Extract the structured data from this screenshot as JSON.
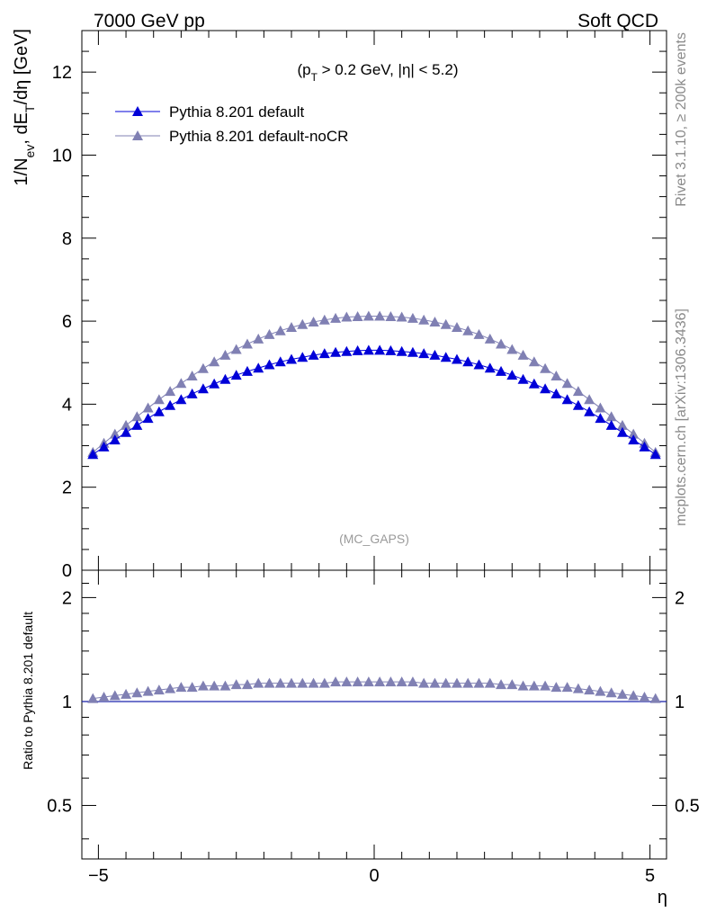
{
  "header": {
    "left": "7000 GeV pp",
    "right": "Soft QCD"
  },
  "side_texts": {
    "rivet": "Rivet 3.1.10, ≥ 200k events",
    "mcplots": "mcplots.cern.ch [arXiv:1306.3436]"
  },
  "annotation": "(MC_GAPS)",
  "colors": {
    "series1": "#0000d8",
    "series2": "#8080b3",
    "reference_line": "#8db000",
    "side_text": "#8a8a8a"
  },
  "chart_data": [
    {
      "type": "line",
      "title": "(p_T > 0.2 GeV, |η| < 5.2)",
      "ylabel": "1/N_ev, dE_T/dη [GeV]",
      "xlabel": "",
      "xlim": [
        -5.3,
        5.3
      ],
      "ylim": [
        0,
        13
      ],
      "y_ticks": [
        0,
        2,
        4,
        6,
        8,
        10,
        12
      ],
      "legend_position": "top-left",
      "grid": false,
      "x": [
        -5.1,
        -4.9,
        -4.7,
        -4.5,
        -4.3,
        -4.1,
        -3.9,
        -3.7,
        -3.5,
        -3.3,
        -3.1,
        -2.9,
        -2.7,
        -2.5,
        -2.3,
        -2.1,
        -1.9,
        -1.7,
        -1.5,
        -1.3,
        -1.1,
        -0.9,
        -0.7,
        -0.5,
        -0.3,
        -0.1,
        0.1,
        0.3,
        0.5,
        0.7,
        0.9,
        1.1,
        1.3,
        1.5,
        1.7,
        1.9,
        2.1,
        2.3,
        2.5,
        2.7,
        2.9,
        3.1,
        3.3,
        3.5,
        3.7,
        3.9,
        4.1,
        4.3,
        4.5,
        4.7,
        4.9,
        5.1
      ],
      "series": [
        {
          "name": "Pythia 8.201 default",
          "values": [
            2.79,
            2.97,
            3.14,
            3.32,
            3.49,
            3.66,
            3.82,
            3.97,
            4.11,
            4.25,
            4.37,
            4.49,
            4.6,
            4.7,
            4.79,
            4.87,
            4.95,
            5.02,
            5.08,
            5.13,
            5.18,
            5.22,
            5.25,
            5.27,
            5.29,
            5.3,
            5.3,
            5.29,
            5.27,
            5.25,
            5.22,
            5.18,
            5.13,
            5.08,
            5.02,
            4.95,
            4.87,
            4.79,
            4.7,
            4.6,
            4.49,
            4.37,
            4.25,
            4.11,
            3.97,
            3.82,
            3.66,
            3.49,
            3.32,
            3.14,
            2.97,
            2.79
          ]
        },
        {
          "name": "Pythia 8.201 default-noCR",
          "values": [
            2.84,
            3.06,
            3.28,
            3.49,
            3.7,
            3.91,
            4.11,
            4.31,
            4.5,
            4.68,
            4.86,
            5.02,
            5.18,
            5.32,
            5.45,
            5.57,
            5.68,
            5.77,
            5.85,
            5.92,
            5.98,
            6.03,
            6.07,
            6.1,
            6.11,
            6.12,
            6.12,
            6.11,
            6.1,
            6.07,
            6.03,
            5.98,
            5.92,
            5.85,
            5.77,
            5.68,
            5.57,
            5.45,
            5.32,
            5.18,
            5.02,
            4.86,
            4.68,
            4.5,
            4.31,
            4.11,
            3.91,
            3.7,
            3.49,
            3.28,
            3.06,
            2.84
          ]
        }
      ]
    },
    {
      "type": "line",
      "title": "",
      "ylabel": "Ratio to Pythia 8.201 default",
      "xlabel": "η",
      "xlim": [
        -5.3,
        5.3
      ],
      "ylim": [
        0.35,
        2.4
      ],
      "log_y": true,
      "y_tick_labels": [
        "0.5",
        "1",
        "2"
      ],
      "x_tick_labels": [
        "−5",
        "0",
        "5"
      ],
      "grid": false,
      "x": [
        -5.1,
        -4.9,
        -4.7,
        -4.5,
        -4.3,
        -4.1,
        -3.9,
        -3.7,
        -3.5,
        -3.3,
        -3.1,
        -2.9,
        -2.7,
        -2.5,
        -2.3,
        -2.1,
        -1.9,
        -1.7,
        -1.5,
        -1.3,
        -1.1,
        -0.9,
        -0.7,
        -0.5,
        -0.3,
        -0.1,
        0.1,
        0.3,
        0.5,
        0.7,
        0.9,
        1.1,
        1.3,
        1.5,
        1.7,
        1.9,
        2.1,
        2.3,
        2.5,
        2.7,
        2.9,
        3.1,
        3.3,
        3.5,
        3.7,
        3.9,
        4.1,
        4.3,
        4.5,
        4.7,
        4.9,
        5.1
      ],
      "reference": 1.0,
      "series": [
        {
          "name": "Pythia 8.201 default-noCR",
          "values": [
            1.02,
            1.03,
            1.04,
            1.05,
            1.06,
            1.07,
            1.08,
            1.09,
            1.1,
            1.1,
            1.11,
            1.11,
            1.11,
            1.12,
            1.12,
            1.13,
            1.13,
            1.13,
            1.13,
            1.13,
            1.13,
            1.13,
            1.14,
            1.14,
            1.14,
            1.14,
            1.14,
            1.14,
            1.14,
            1.14,
            1.13,
            1.13,
            1.13,
            1.13,
            1.13,
            1.13,
            1.13,
            1.12,
            1.12,
            1.11,
            1.11,
            1.11,
            1.1,
            1.1,
            1.09,
            1.08,
            1.07,
            1.06,
            1.05,
            1.04,
            1.03,
            1.02
          ]
        }
      ]
    }
  ]
}
